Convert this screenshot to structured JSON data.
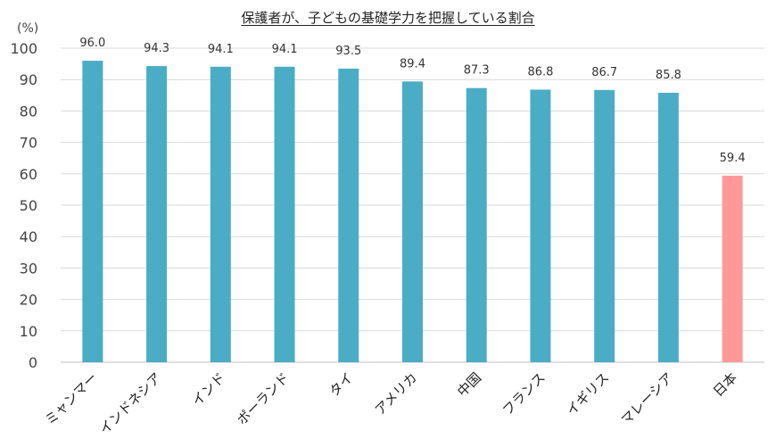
{
  "chart_data": {
    "type": "bar",
    "title": "保護者が、子どもの基礎学力を把握している割合",
    "ylabel": "(%)",
    "xlabel": "",
    "categories": [
      "ミャンマー",
      "インドネシア",
      "インド",
      "ポーランド",
      "タイ",
      "アメリカ",
      "中国",
      "フランス",
      "イギリス",
      "マレーシア",
      "日本"
    ],
    "values": [
      96.0,
      94.3,
      94.1,
      94.1,
      93.5,
      89.4,
      87.3,
      86.8,
      86.7,
      85.8,
      59.4
    ],
    "value_labels": [
      "96.0",
      "94.3",
      "94.1",
      "94.1",
      "93.5",
      "89.4",
      "87.3",
      "86.8",
      "86.7",
      "85.8",
      "59.4"
    ],
    "ylim": [
      0,
      100
    ],
    "yticks": [
      0,
      10,
      20,
      30,
      40,
      50,
      60,
      70,
      80,
      90,
      100
    ],
    "grid": true,
    "legend": "none",
    "colors": {
      "bar": "#4bacc6",
      "highlight_bar": "#ff9999",
      "highlight_index": 10,
      "grid": "#d9d9d9",
      "axis": "#bfbfbf"
    }
  }
}
